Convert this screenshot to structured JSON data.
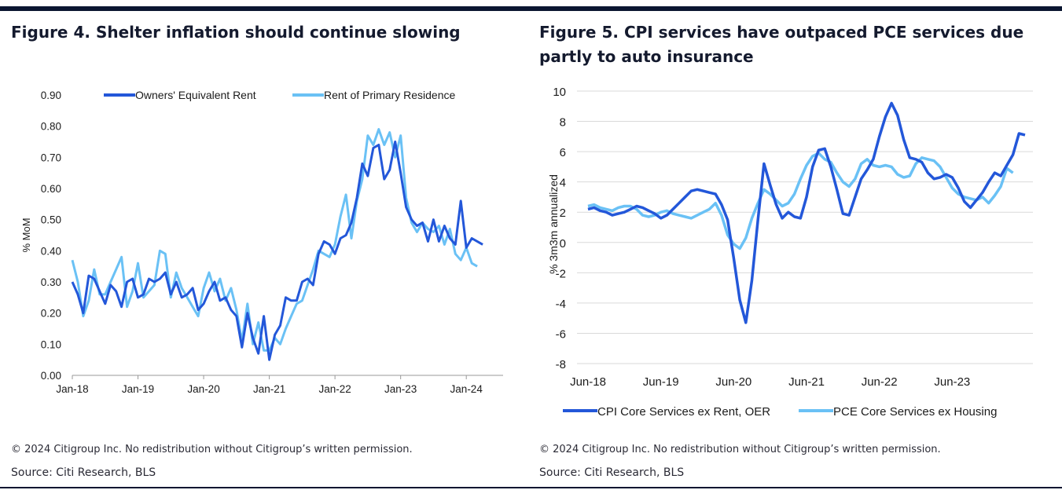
{
  "colors": {
    "dark_blue": "#2357d9",
    "light_blue": "#6ac1f5",
    "navy": "#0b1631",
    "grid": "#d9d9d9"
  },
  "figure4": {
    "title": "Figure 4. Shelter inflation should continue slowing",
    "copyright": "© 2024 Citigroup Inc. No redistribution without Citigroup’s written permission.",
    "source": "Source: Citi Research, BLS"
  },
  "figure5": {
    "title": "Figure 5. CPI services have outpaced PCE services due partly to auto insurance",
    "copyright": "© 2024 Citigroup Inc. No redistribution without Citigroup’s written permission.",
    "source": "Source: Citi Research, BLS"
  },
  "chart_data": [
    {
      "type": "line",
      "title": "Figure 4. Shelter inflation should continue slowing",
      "xlabel": "",
      "ylabel": "% MoM",
      "ylim": [
        0,
        0.9
      ],
      "yticks": [
        "0.00",
        "0.10",
        "0.20",
        "0.30",
        "0.40",
        "0.50",
        "0.60",
        "0.70",
        "0.80",
        "0.90"
      ],
      "xticks": [
        "Jan-18",
        "Jan-19",
        "Jan-20",
        "Jan-21",
        "Jan-22",
        "Jan-23",
        "Jan-24"
      ],
      "grid": false,
      "legend": "top",
      "x_start": "2018-01",
      "series": [
        {
          "name": "Owners' Equivalent Rent",
          "color": "#2357d9",
          "values": [
            0.3,
            0.26,
            0.2,
            0.32,
            0.31,
            0.27,
            0.23,
            0.29,
            0.27,
            0.22,
            0.3,
            0.31,
            0.25,
            0.26,
            0.31,
            0.3,
            0.31,
            0.33,
            0.26,
            0.3,
            0.25,
            0.26,
            0.28,
            0.21,
            0.23,
            0.27,
            0.3,
            0.24,
            0.25,
            0.21,
            0.19,
            0.09,
            0.2,
            0.12,
            0.07,
            0.19,
            0.05,
            0.13,
            0.16,
            0.25,
            0.24,
            0.24,
            0.3,
            0.31,
            0.29,
            0.39,
            0.43,
            0.42,
            0.39,
            0.44,
            0.45,
            0.49,
            0.57,
            0.68,
            0.64,
            0.73,
            0.74,
            0.63,
            0.66,
            0.75,
            0.65,
            0.54,
            0.5,
            0.48,
            0.49,
            0.43,
            0.5,
            0.43,
            0.48,
            0.44,
            0.42,
            0.56,
            0.41,
            0.44,
            0.43,
            0.42
          ]
        },
        {
          "name": "Rent of Primary Residence",
          "color": "#6ac1f5",
          "values": [
            0.37,
            0.3,
            0.19,
            0.24,
            0.34,
            0.26,
            0.26,
            0.3,
            0.34,
            0.38,
            0.22,
            0.27,
            0.36,
            0.25,
            0.27,
            0.29,
            0.4,
            0.39,
            0.25,
            0.33,
            0.28,
            0.25,
            0.22,
            0.19,
            0.28,
            0.33,
            0.27,
            0.31,
            0.24,
            0.28,
            0.21,
            0.11,
            0.23,
            0.1,
            0.17,
            0.08,
            0.08,
            0.12,
            0.1,
            0.15,
            0.19,
            0.23,
            0.24,
            0.29,
            0.34,
            0.4,
            0.39,
            0.38,
            0.42,
            0.51,
            0.58,
            0.44,
            0.56,
            0.63,
            0.77,
            0.74,
            0.79,
            0.74,
            0.78,
            0.7,
            0.77,
            0.57,
            0.49,
            0.46,
            0.49,
            0.47,
            0.46,
            0.48,
            0.42,
            0.47,
            0.39,
            0.37,
            0.41,
            0.36,
            0.35
          ]
        }
      ]
    },
    {
      "type": "line",
      "title": "Figure 5. CPI services have outpaced PCE services due partly to auto insurance",
      "xlabel": "",
      "ylabel": "% 3m3m annualized",
      "ylim": [
        -8,
        10
      ],
      "yticks": [
        "-8",
        "-6",
        "-4",
        "-2",
        "0",
        "2",
        "4",
        "6",
        "8",
        "10"
      ],
      "xticks": [
        "Jun-18",
        "Jun-19",
        "Jun-20",
        "Jun-21",
        "Jun-22",
        "Jun-23"
      ],
      "grid": true,
      "legend": "bottom",
      "x_start": "2018-06",
      "series": [
        {
          "name": "CPI Core Services ex Rent, OER",
          "color": "#2357d9",
          "values": [
            2.2,
            2.3,
            2.1,
            2.0,
            1.8,
            1.9,
            2.0,
            2.2,
            2.4,
            2.3,
            2.1,
            1.9,
            1.6,
            1.8,
            2.2,
            2.6,
            3.0,
            3.4,
            3.5,
            3.4,
            3.3,
            3.2,
            2.5,
            1.5,
            -1.0,
            -3.8,
            -5.3,
            -2.5,
            1.5,
            5.2,
            3.8,
            2.5,
            1.6,
            2.0,
            1.7,
            1.6,
            3.0,
            5.0,
            6.1,
            6.2,
            5.0,
            3.5,
            1.9,
            1.8,
            3.0,
            4.2,
            4.8,
            5.5,
            7.0,
            8.3,
            9.2,
            8.4,
            6.8,
            5.6,
            5.5,
            5.3,
            4.6,
            4.2,
            4.3,
            4.5,
            4.3,
            3.6,
            2.7,
            2.3,
            2.8,
            3.3,
            4.0,
            4.6,
            4.4,
            5.1,
            5.8,
            7.2,
            7.1
          ]
        },
        {
          "name": "PCE Core Services ex Housing",
          "color": "#6ac1f5",
          "values": [
            2.4,
            2.5,
            2.3,
            2.2,
            2.1,
            2.3,
            2.4,
            2.4,
            2.2,
            1.8,
            1.7,
            1.8,
            2.0,
            2.1,
            1.9,
            1.8,
            1.7,
            1.6,
            1.8,
            2.0,
            2.2,
            2.6,
            1.8,
            0.5,
            -0.1,
            -0.4,
            0.3,
            1.6,
            2.6,
            3.5,
            3.2,
            2.8,
            2.4,
            2.6,
            3.2,
            4.2,
            5.1,
            5.7,
            5.9,
            5.5,
            5.3,
            4.6,
            4.0,
            3.7,
            4.2,
            5.2,
            5.5,
            5.1,
            5.0,
            5.1,
            5.0,
            4.5,
            4.3,
            4.4,
            5.2,
            5.6,
            5.5,
            5.4,
            5.0,
            4.3,
            3.6,
            3.2,
            3.0,
            2.9,
            2.8,
            3.0,
            2.6,
            3.1,
            3.7,
            4.9,
            4.6
          ]
        }
      ]
    }
  ]
}
